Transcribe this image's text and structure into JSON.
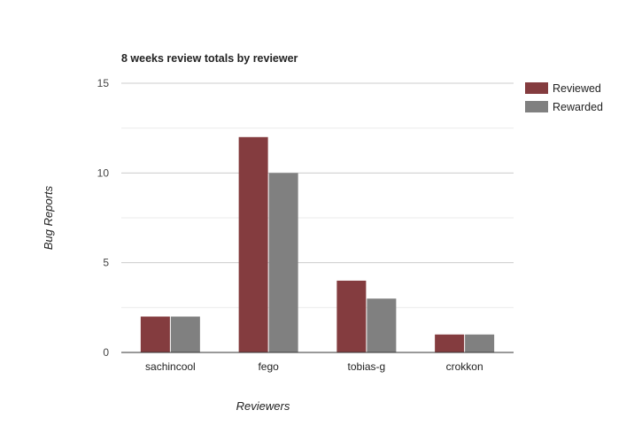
{
  "chart_data": {
    "type": "bar",
    "title": "8 weeks review totals by reviewer",
    "xlabel": "Reviewers",
    "ylabel": "Bug Reports",
    "categories": [
      "sachincool",
      "fego",
      "tobias-g",
      "crokkon"
    ],
    "series": [
      {
        "name": "Reviewed",
        "values": [
          2,
          12,
          4,
          1
        ],
        "color": "#843c3f"
      },
      {
        "name": "Rewarded",
        "values": [
          2,
          10,
          3,
          1
        ],
        "color": "#808080"
      }
    ],
    "ylim": [
      0,
      15
    ],
    "yticks": [
      0,
      5,
      10,
      15
    ],
    "grid": true,
    "legend": "right"
  }
}
